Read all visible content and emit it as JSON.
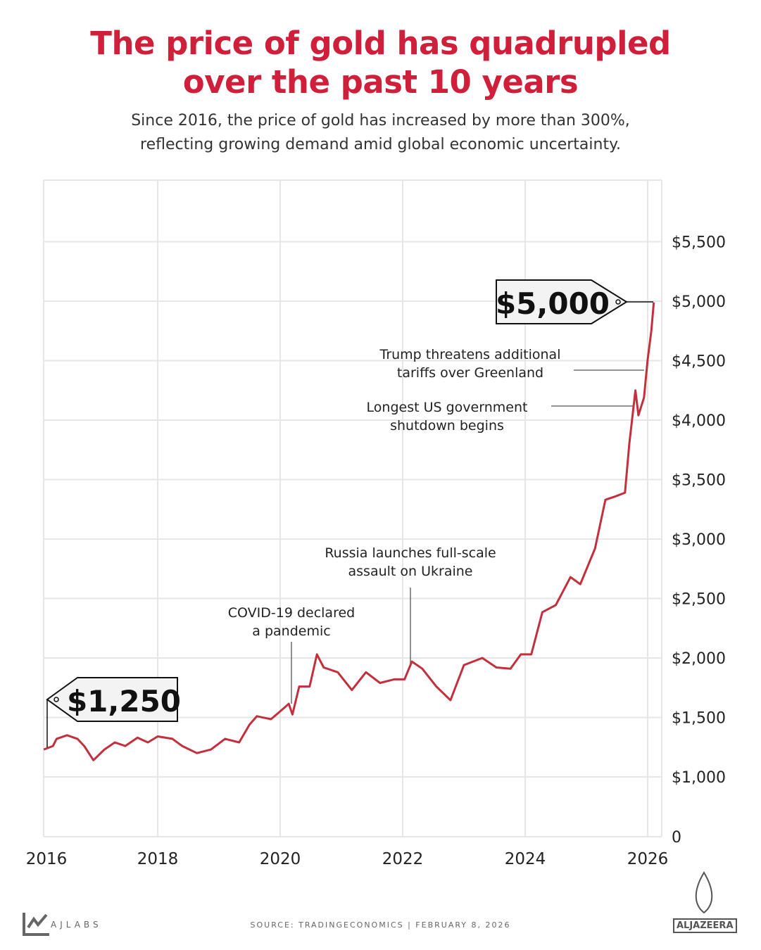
{
  "title_line1": "The price of gold has quadrupled",
  "title_line2": "over the past 10 years",
  "subtitle_line1": "Since 2016, the price of gold has increased by more than 300%,",
  "subtitle_line2": "reflecting growing demand amid global economic uncertainty.",
  "footer": {
    "source": "SOURCE:  TRADINGECONOMICS  |   FEBRUARY 8, 2026",
    "brand_left": "AJLABS",
    "brand_right": "ALJAZEERA"
  },
  "colors": {
    "title": "#cf1f3a",
    "line": "#c1303c",
    "grid": "#e6e6e6"
  },
  "chart_data": {
    "type": "line",
    "title": "The price of gold has quadrupled over the past 10 years",
    "xlabel": "",
    "ylabel": "",
    "x_ticks": [
      2016,
      2018,
      2020,
      2022,
      2024,
      2026
    ],
    "x_tick_labels": [
      "2016",
      "2018",
      "2020",
      "2022",
      "2024",
      "2026"
    ],
    "y_ticks": [
      0,
      1000,
      1500,
      2000,
      2500,
      3000,
      3500,
      4000,
      4500,
      5000,
      5500
    ],
    "y_tick_labels": [
      "0",
      "$1,000",
      "$1,500",
      "$2,000",
      "$2,500",
      "$3,000",
      "$3,500",
      "$4,000",
      "$4,500",
      "$5,000",
      "$5,500"
    ],
    "y_axis_break": true,
    "y_axis_side": "right",
    "grid": true,
    "series": [
      {
        "x": [
          2016.14,
          2016.29,
          2016.35,
          2016.52,
          2016.69,
          2016.8,
          2016.95,
          2017.13,
          2017.3,
          2017.47,
          2017.67,
          2017.84,
          2018.0,
          2018.24,
          2018.4,
          2018.64,
          2018.87,
          2019.1,
          2019.33,
          2019.5,
          2019.62,
          2019.85,
          2020.02,
          2020.14,
          2020.2,
          2020.31,
          2020.48,
          2020.6,
          2020.71,
          2020.94,
          2021.17,
          2021.4,
          2021.63,
          2021.86,
          2022.03,
          2022.15,
          2022.32,
          2022.55,
          2022.78,
          2023.0,
          2023.3,
          2023.53,
          2023.76,
          2023.93,
          2024.1,
          2024.28,
          2024.5,
          2024.74,
          2024.9,
          2025.14,
          2025.31,
          2025.48,
          2025.63,
          2025.7,
          2025.8,
          2025.85,
          2025.94,
          2026.0,
          2026.06,
          2026.1
        ],
        "y": [
          1230,
          1260,
          1320,
          1350,
          1320,
          1260,
          1140,
          1230,
          1290,
          1260,
          1330,
          1290,
          1340,
          1320,
          1260,
          1200,
          1230,
          1320,
          1290,
          1440,
          1510,
          1485,
          1560,
          1615,
          1525,
          1760,
          1760,
          2030,
          1920,
          1880,
          1730,
          1880,
          1790,
          1820,
          1820,
          1970,
          1910,
          1760,
          1645,
          1940,
          2000,
          1920,
          1910,
          2030,
          2030,
          2385,
          2445,
          2680,
          2620,
          2920,
          3330,
          3360,
          3390,
          3800,
          4250,
          4040,
          4190,
          4510,
          4750,
          4990
        ]
      }
    ],
    "callouts": [
      {
        "label": "$1,250",
        "x": 2016.14,
        "y": 1250
      },
      {
        "label": "$5,000",
        "x": 2026.1,
        "y": 5000
      }
    ],
    "annotations": [
      {
        "line1": "COVID-19 declared",
        "line2": "a pandemic",
        "x": 2020.2,
        "y": 1615
      },
      {
        "line1": "Russia launches full-scale",
        "line2": "assault on Ukraine",
        "x": 2022.15,
        "y": 1970
      },
      {
        "line1": "Longest US government",
        "line2": "shutdown begins",
        "x": 2025.75,
        "y": 4100
      },
      {
        "line1": "Trump threatens additional",
        "line2": "tariffs over Greenland",
        "x": 2026.0,
        "y": 4400
      }
    ]
  }
}
